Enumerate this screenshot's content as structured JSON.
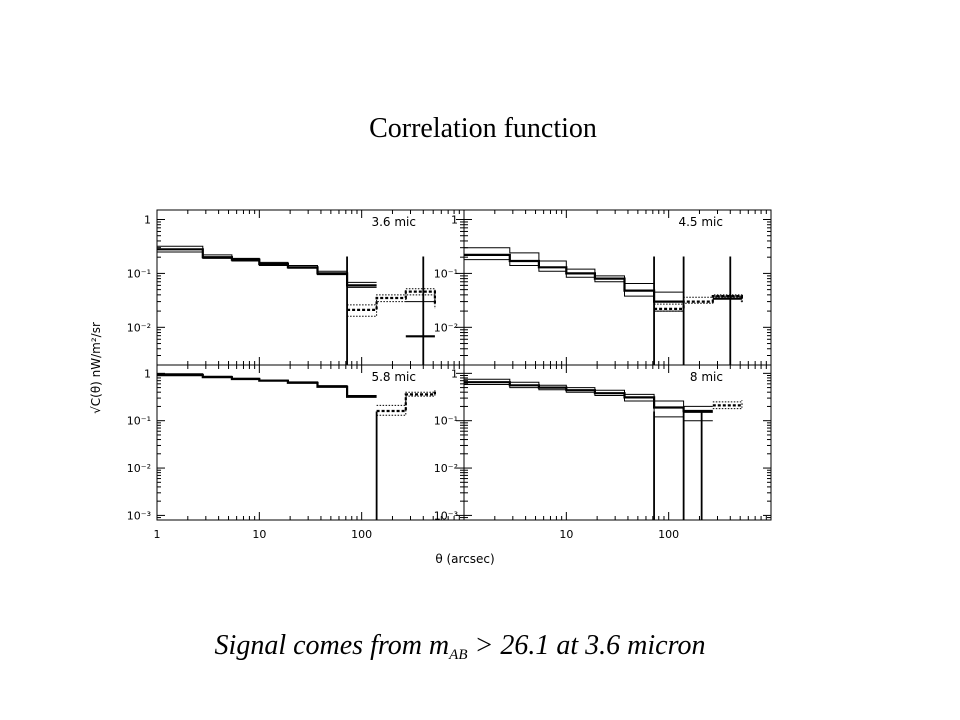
{
  "slide": {
    "title": "Correlation function",
    "caption_prefix": "Signal comes from m",
    "caption_sub": "AB",
    "caption_suffix": " > 26.1 at 3.6 micron"
  },
  "chart_data": {
    "type": "line",
    "step": true,
    "scale": {
      "x": "log",
      "y": "log"
    },
    "xlabel": "θ (arcsec)",
    "ylabel": "√C(θ)  nW/m²/sr",
    "xlim": [
      1,
      1000
    ],
    "x_ticks": [
      "1",
      "10",
      "100"
    ],
    "panels": [
      {
        "label": "3.6 mic",
        "ylim": [
          0.002,
          1.5
        ],
        "y_ticks": [
          "1",
          "10⁻¹",
          "10⁻²"
        ],
        "y_tick_values": [
          1,
          0.1,
          0.01
        ],
        "edges": [
          1,
          2.8,
          5.4,
          10,
          19,
          37,
          72,
          140,
          270,
          520
        ],
        "series": [
          {
            "style": "solid",
            "values": [
              0.32,
              0.22,
              0.19,
              0.16,
              0.14,
              0.11,
              0.068
            ]
          },
          {
            "style": "solid-bold",
            "values": [
              0.28,
              0.2,
              0.18,
              0.15,
              0.13,
              0.1,
              0.06
            ]
          },
          {
            "style": "solid",
            "values": [
              0.25,
              0.19,
              0.17,
              0.14,
              0.125,
              0.095,
              0.055
            ]
          },
          {
            "style": "solid",
            "values": [
              null,
              null,
              null,
              null,
              null,
              null,
              null,
              null,
              0.03
            ]
          },
          {
            "style": "solid-bold",
            "values": [
              null,
              null,
              null,
              null,
              null,
              null,
              null,
              null,
              0.0068
            ]
          },
          {
            "style": "dotted",
            "values": [
              null,
              null,
              null,
              null,
              null,
              null,
              0.016,
              0.03,
              0.04,
              0.022
            ]
          },
          {
            "style": "dotted",
            "values": [
              null,
              null,
              null,
              null,
              null,
              null,
              0.026,
              0.04,
              0.052,
              0.032
            ]
          },
          {
            "style": "dotted-bold",
            "values": [
              null,
              null,
              null,
              null,
              null,
              null,
              0.021,
              0.035,
              0.046,
              0.027
            ]
          }
        ],
        "drops": [
          72,
          400
        ]
      },
      {
        "label": "4.5 mic",
        "ylim": [
          0.002,
          1.5
        ],
        "y_ticks": [
          "1",
          "10⁻¹",
          "10⁻²"
        ],
        "y_tick_values": [
          1,
          0.1,
          0.01
        ],
        "edges": [
          1,
          2.8,
          5.4,
          10,
          19,
          37,
          72,
          140,
          270,
          520
        ],
        "series": [
          {
            "style": "solid",
            "values": [
              0.3,
              0.24,
              0.17,
              0.12,
              0.09,
              0.065,
              0.045
            ]
          },
          {
            "style": "solid-bold",
            "values": [
              0.22,
              0.17,
              0.13,
              0.1,
              0.08,
              0.048,
              0.03
            ]
          },
          {
            "style": "solid",
            "values": [
              0.18,
              0.14,
              0.11,
              0.085,
              0.07,
              0.038,
              0.02
            ]
          },
          {
            "style": "solid",
            "values": [
              null,
              null,
              null,
              null,
              null,
              null,
              null,
              null,
              0.038
            ]
          },
          {
            "style": "solid-bold",
            "values": [
              null,
              null,
              null,
              null,
              null,
              null,
              null,
              null,
              0.034
            ]
          },
          {
            "style": "dotted",
            "values": [
              null,
              null,
              null,
              null,
              null,
              null,
              0.02,
              0.028,
              0.036,
              0.028
            ]
          },
          {
            "style": "dotted",
            "values": [
              null,
              null,
              null,
              null,
              null,
              null,
              0.027,
              0.036,
              0.04,
              0.033
            ]
          },
          {
            "style": "dotted-bold",
            "values": [
              null,
              null,
              null,
              null,
              null,
              null,
              0.022,
              0.03,
              0.038,
              0.03
            ]
          }
        ],
        "drops": [
          72,
          140,
          400
        ]
      },
      {
        "label": "5.8 mic",
        "ylim": [
          0.0008,
          1.5
        ],
        "y_ticks": [
          "1",
          "10⁻¹",
          "10⁻²",
          "10⁻³"
        ],
        "y_tick_values": [
          1,
          0.1,
          0.01,
          0.001
        ],
        "edges": [
          1,
          2.8,
          5.4,
          10,
          19,
          37,
          72,
          140,
          270,
          520
        ],
        "series": [
          {
            "style": "solid",
            "values": [
              0.98,
              0.87,
              0.79,
              0.72,
              0.66,
              0.55,
              0.34
            ]
          },
          {
            "style": "solid-bold",
            "values": [
              0.92,
              0.83,
              0.76,
              0.7,
              0.63,
              0.52,
              0.32
            ]
          },
          {
            "style": "dotted",
            "values": [
              null,
              null,
              null,
              null,
              null,
              null,
              null,
              0.13,
              0.33,
              0.37
            ]
          },
          {
            "style": "dotted",
            "values": [
              null,
              null,
              null,
              null,
              null,
              null,
              null,
              0.21,
              0.4,
              0.45
            ]
          },
          {
            "style": "dotted-bold",
            "values": [
              null,
              null,
              null,
              null,
              null,
              null,
              null,
              0.16,
              0.36,
              0.41
            ]
          }
        ],
        "drops": [
          140
        ]
      },
      {
        "label": "8 mic",
        "ylim": [
          0.0008,
          1.5
        ],
        "y_ticks": [
          "1",
          "10⁻¹",
          "10⁻²",
          "10⁻³"
        ],
        "y_tick_values": [
          1,
          0.1,
          0.01,
          0.001
        ],
        "edges": [
          1,
          2.8,
          5.4,
          10,
          19,
          37,
          72,
          140,
          270,
          520
        ],
        "series": [
          {
            "style": "solid",
            "values": [
              0.75,
              0.65,
              0.56,
              0.5,
              0.44,
              0.36,
              0.26,
              0.2
            ]
          },
          {
            "style": "solid-bold",
            "values": [
              0.65,
              0.56,
              0.5,
              0.44,
              0.38,
              0.31,
              0.19,
              0.16
            ]
          },
          {
            "style": "solid",
            "values": [
              0.58,
              0.5,
              0.45,
              0.4,
              0.34,
              0.26,
              0.12,
              0.1
            ]
          },
          {
            "style": "solid",
            "values": [
              null,
              null,
              null,
              null,
              null,
              null,
              null,
              0.15
            ]
          },
          {
            "style": "dotted",
            "values": [
              null,
              null,
              null,
              null,
              null,
              null,
              null,
              null,
              0.18,
              0.2
            ]
          },
          {
            "style": "dotted",
            "values": [
              null,
              null,
              null,
              null,
              null,
              null,
              null,
              null,
              0.25,
              0.27
            ]
          },
          {
            "style": "dotted-bold",
            "values": [
              null,
              null,
              null,
              null,
              null,
              null,
              null,
              null,
              0.21,
              0.23
            ]
          }
        ],
        "drops": [
          72,
          140,
          210
        ]
      }
    ]
  }
}
